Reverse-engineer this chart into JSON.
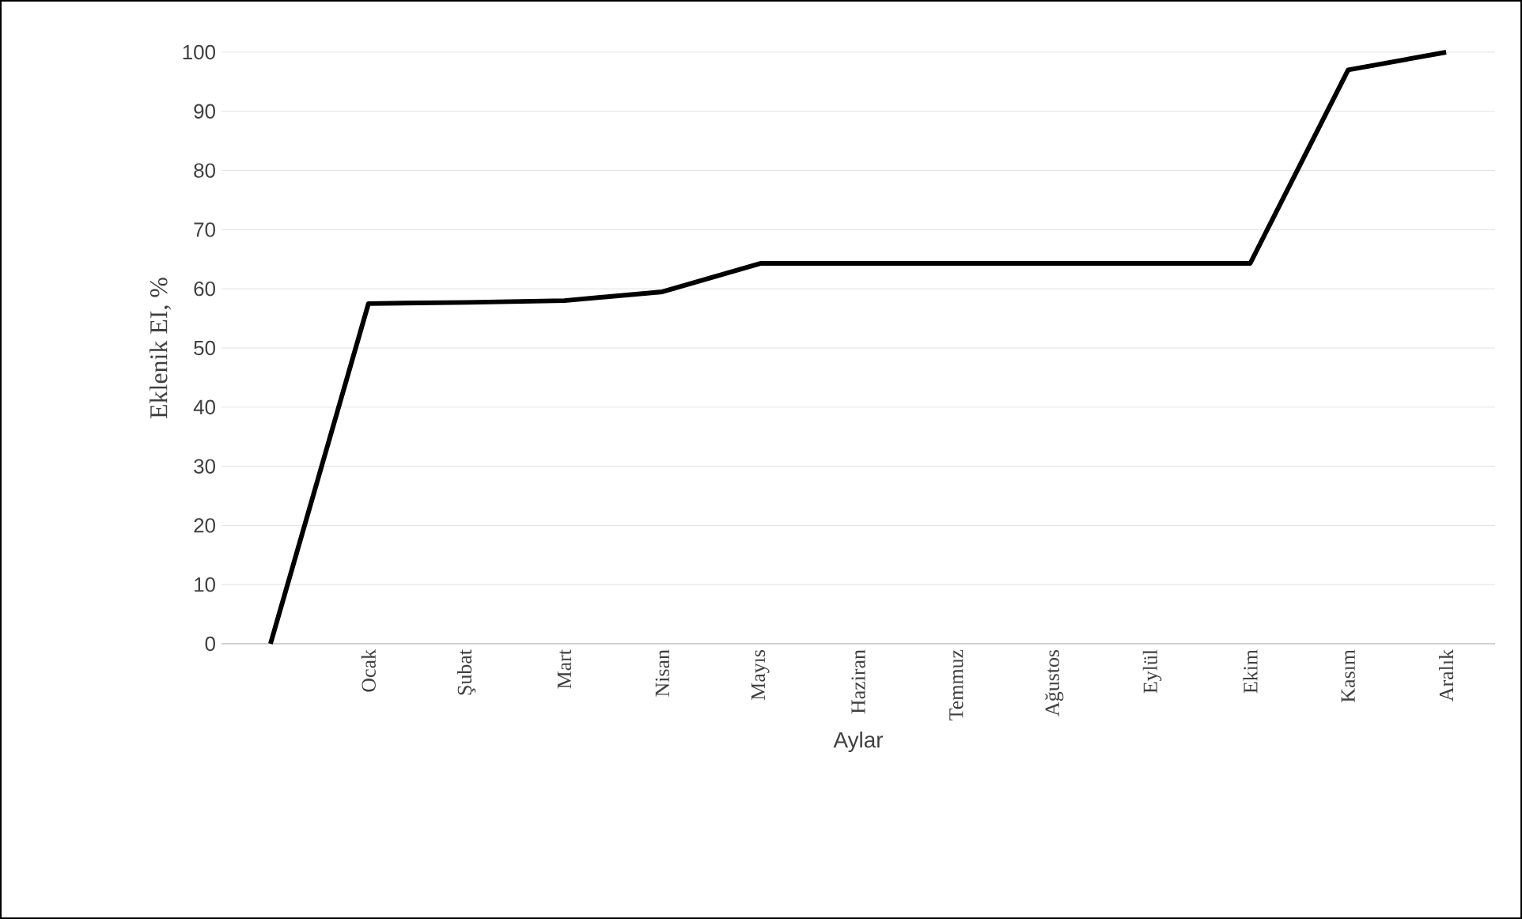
{
  "chart_data": {
    "type": "line",
    "xlabel": "Aylar",
    "ylabel": "Eklenik EI, %",
    "categories": [
      null,
      "Ocak",
      "Şubat",
      "Mart",
      "Nisan",
      "Mayıs",
      "Haziran",
      "Temmuz",
      "Ağustos",
      "Eylül",
      "Ekim",
      "Kasım",
      "Aralık"
    ],
    "series": [
      {
        "color": "#000000",
        "values": [
          0,
          57.5,
          57.7,
          58,
          59.5,
          64.3,
          64.3,
          64.3,
          64.3,
          64.3,
          64.3,
          97,
          100
        ]
      }
    ],
    "ylim": [
      0,
      100
    ],
    "yticks": [
      0,
      10,
      20,
      30,
      40,
      50,
      60,
      70,
      80,
      90,
      100
    ],
    "grid": "y",
    "marker": "none",
    "line_style": "solid"
  }
}
